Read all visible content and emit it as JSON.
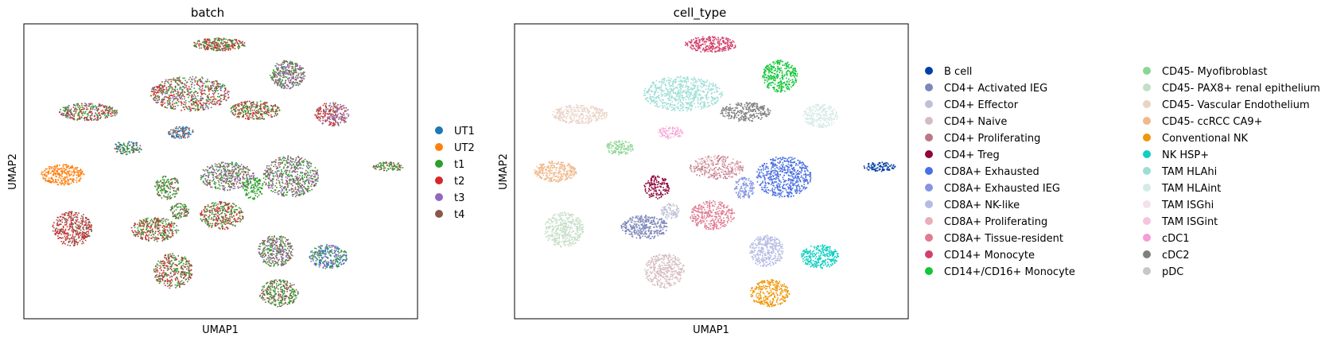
{
  "chart_data": [
    {
      "type": "scatter",
      "title": "batch",
      "xlabel": "UMAP1",
      "ylabel": "UMAP2",
      "grid": false,
      "legend_placement": "right",
      "legend": [
        {
          "name": "UT1",
          "color": "#1f77b4"
        },
        {
          "name": "UT2",
          "color": "#ff7f0e"
        },
        {
          "name": "t1",
          "color": "#2ca02c"
        },
        {
          "name": "t2",
          "color": "#d62728"
        },
        {
          "name": "t3",
          "color": "#9467bd"
        },
        {
          "name": "t4",
          "color": "#8c564b"
        }
      ]
    },
    {
      "type": "scatter",
      "title": "cell_type",
      "xlabel": "UMAP1",
      "ylabel": "UMAP2",
      "grid": false,
      "legend_placement": "right",
      "legend": [
        {
          "name": "B cell",
          "color": "#023fa5"
        },
        {
          "name": "CD4+ Activated IEG",
          "color": "#7d87b9"
        },
        {
          "name": "CD4+ Effector",
          "color": "#bec1d4"
        },
        {
          "name": "CD4+ Naive",
          "color": "#d6bcc0"
        },
        {
          "name": "CD4+ Proliferating",
          "color": "#bb7784"
        },
        {
          "name": "CD4+ Treg",
          "color": "#8e063b"
        },
        {
          "name": "CD8A+ Exhausted",
          "color": "#4a6fe3"
        },
        {
          "name": "CD8A+ Exhausted IEG",
          "color": "#8595e1"
        },
        {
          "name": "CD8A+ NK-like",
          "color": "#b5bbe3"
        },
        {
          "name": "CD8A+ Proliferating",
          "color": "#e6afb9"
        },
        {
          "name": "CD8A+ Tissue-resident",
          "color": "#e07b91"
        },
        {
          "name": "CD14+ Monocyte",
          "color": "#d33f6a"
        },
        {
          "name": "CD14+/CD16+ Monocyte",
          "color": "#11c638"
        },
        {
          "name": "CD45- Myofibroblast",
          "color": "#8dd593"
        },
        {
          "name": "CD45- PAX8+ renal epithelium",
          "color": "#c6dec7"
        },
        {
          "name": "CD45- Vascular Endothelium",
          "color": "#ead3c6"
        },
        {
          "name": "CD45- ccRCC CA9+",
          "color": "#f0b98d"
        },
        {
          "name": "Conventional NK",
          "color": "#ef9708"
        },
        {
          "name": "NK HSP+",
          "color": "#0fcfc0"
        },
        {
          "name": "TAM HLAhi",
          "color": "#9cded6"
        },
        {
          "name": "TAM HLAint",
          "color": "#d5eae7"
        },
        {
          "name": "TAM ISGhi",
          "color": "#f3e1eb"
        },
        {
          "name": "TAM ISGint",
          "color": "#f6c4e1"
        },
        {
          "name": "cDC1",
          "color": "#f79cd4"
        },
        {
          "name": "cDC2",
          "color": "#7f7f7f"
        },
        {
          "name": "pDC",
          "color": "#c7c7c7"
        }
      ]
    }
  ]
}
